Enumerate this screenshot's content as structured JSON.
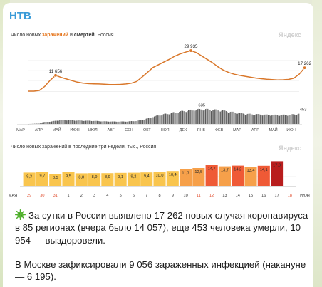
{
  "channel": {
    "name": "НТВ"
  },
  "watermark": "Яндекс",
  "chart_data": [
    {
      "type": "line",
      "title_parts": {
        "pre": "Число новых ",
        "cases": "заражений",
        "mid": " и ",
        "deaths": "смертей",
        "post": ", Россия"
      },
      "xlabels": [
        "МАР",
        "АПР",
        "МАЙ",
        "ИЮН",
        "ИЮЛ",
        "АВГ",
        "СЕН",
        "ОКТ",
        "НОЯ",
        "ДЕК",
        "ЯНВ",
        "ФЕВ",
        "МАР",
        "АПР",
        "МАЙ",
        "ИЮН"
      ],
      "annotations": [
        "11 656",
        "29 935",
        "17 262",
        "635",
        "453"
      ],
      "series": [
        {
          "name": "заражений",
          "color": "#d9772a",
          "x": [
            0,
            0.3,
            0.6,
            0.9,
            1.2,
            1.5,
            1.8,
            2.1,
            2.4,
            2.7,
            3.0,
            3.3,
            3.6,
            3.9,
            4.2,
            4.5,
            4.8,
            5.1,
            5.4,
            5.7,
            6.0,
            6.3,
            6.6,
            6.9,
            7.2,
            7.5,
            7.8,
            8.1,
            8.4,
            8.7,
            9.0,
            9.3,
            9.6,
            9.9,
            10.2,
            10.5,
            10.8,
            11.1,
            11.4,
            11.7,
            12.0,
            12.3,
            12.6,
            12.9,
            13.2,
            13.5,
            13.8,
            14.1,
            14.4,
            14.7,
            15.0,
            15.3
          ],
          "values": [
            0,
            0,
            500,
            3500,
            8000,
            11656,
            10200,
            9000,
            7800,
            6700,
            6000,
            5600,
            5400,
            5300,
            5100,
            4900,
            4900,
            5000,
            5300,
            5900,
            7200,
            10500,
            14000,
            17500,
            19500,
            21500,
            23500,
            25800,
            27500,
            28800,
            29935,
            28500,
            26000,
            23500,
            21000,
            18000,
            15500,
            13800,
            12500,
            11700,
            11000,
            10300,
            9700,
            9200,
            8800,
            8500,
            8300,
            8400,
            8700,
            9500,
            12500,
            17262
          ],
          "peaks": [
            "11 656",
            "29 935",
            "17 262"
          ]
        },
        {
          "name": "смертей",
          "color": "#555555",
          "x": [
            0,
            0.6,
            1.2,
            1.8,
            2.4,
            3.0,
            3.6,
            4.2,
            4.8,
            5.4,
            6.0,
            6.6,
            7.2,
            7.8,
            8.4,
            9.0,
            9.6,
            10.2,
            10.8,
            11.4,
            12.0,
            12.6,
            13.2,
            13.8,
            14.4,
            15.0,
            15.3
          ],
          "values": [
            0,
            20,
            100,
            170,
            150,
            140,
            130,
            110,
            100,
            105,
            130,
            240,
            370,
            460,
            530,
            590,
            630,
            610,
            560,
            490,
            430,
            410,
            390,
            380,
            390,
            430,
            453
          ],
          "peaks": [
            "635",
            "453"
          ]
        }
      ]
    },
    {
      "type": "bar",
      "title": "Число новых заражений в последние три недели, тыс., Россия",
      "month_left": "МАЯ",
      "month_right": "ИЮН",
      "categories": [
        "29",
        "30",
        "31",
        "1",
        "2",
        "3",
        "4",
        "5",
        "6",
        "7",
        "8",
        "9",
        "10",
        "11",
        "12",
        "13",
        "14",
        "15",
        "16",
        "17",
        "18"
      ],
      "values": [
        9.3,
        9.7,
        8.5,
        9.5,
        8.8,
        8.9,
        8.9,
        9.1,
        9.2,
        9.4,
        10.0,
        10.4,
        11.7,
        12.5,
        14.7,
        13.7,
        14.2,
        13.4,
        14.1,
        17.3,
        null
      ],
      "labels": [
        "9,3",
        "9,7",
        "8,5",
        "9,5",
        "8,8",
        "8,9",
        "8,9",
        "9,1",
        "9,2",
        "9,4",
        "10,0",
        "10,4",
        "11,7",
        "12,5",
        "14,7",
        "13,7",
        "14,2",
        "13,4",
        "14,1",
        "17,3",
        ""
      ],
      "weekend_indices": [
        0,
        1,
        2,
        13,
        14,
        20
      ],
      "ylim": [
        0,
        20
      ]
    }
  ],
  "post": {
    "paragraph1": "За сутки в России выявлено 17 262 новых случая коронавируса в 85 регионах (вчера было 14 057), еще 453 человека умерли, 10 954 — выздоровели.",
    "paragraph2": "В Москве зафиксировали 9 056 зараженных инфекцией (накануне — 6 195)."
  }
}
